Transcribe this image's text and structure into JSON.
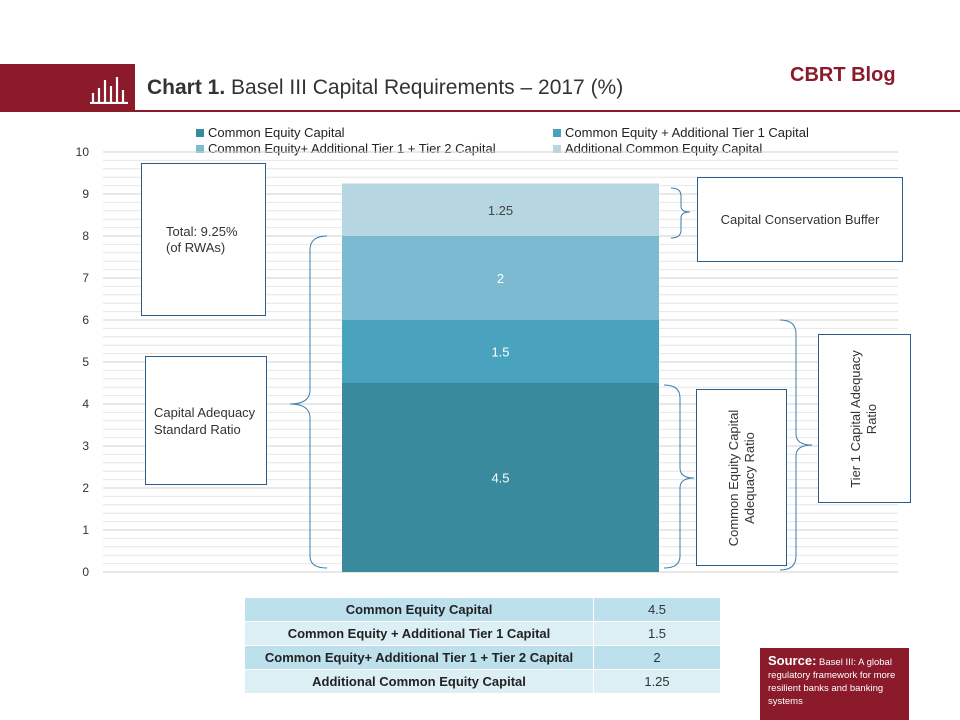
{
  "header": {
    "title_bold": "Chart 1.",
    "title_rest": "Basel III Capital  Requirements – 2017 (%)",
    "blog_label": "CBRT Blog"
  },
  "colors": {
    "brand": "#8b1a2b",
    "series": [
      "#3a8a9e",
      "#4aa3be",
      "#7cbad1",
      "#b6d6e2"
    ]
  },
  "chart_data": {
    "type": "bar",
    "stacked": true,
    "categories": [
      ""
    ],
    "series": [
      {
        "name": "Common Equity Capital",
        "values": [
          4.5
        ]
      },
      {
        "name": "Common Equity + Additional Tier 1 Capital",
        "values": [
          1.5
        ]
      },
      {
        "name": "Common Equity+ Additional Tier 1 + Tier 2 Capital",
        "values": [
          2
        ]
      },
      {
        "name": "Additional Common Equity Capital",
        "values": [
          1.25
        ]
      }
    ],
    "data_labels": [
      "4.5",
      "1.5",
      "2",
      "1.25"
    ],
    "ylim": [
      0,
      10
    ],
    "yticks": [
      "0",
      "1",
      "2",
      "3",
      "4",
      "5",
      "6",
      "7",
      "8",
      "9",
      "10"
    ],
    "grid": true,
    "legend_position": "top"
  },
  "annotations": {
    "total_line1": "Total: 9.25%",
    "total_line2": "(of RWAs)",
    "capital_adequacy_line1": "Capital Adequacy",
    "capital_adequacy_line2": "Standard Ratio",
    "conservation_buffer": "Capital Conservation Buffer",
    "cet1_line1": "Common Equity Capital",
    "cet1_line2": "Adequacy Ratio",
    "tier1_line1": "Tier 1 Capital Adequacy",
    "tier1_line2": "Ratio"
  },
  "table": {
    "rows": [
      {
        "label": "Common Equity Capital",
        "value": "4.5"
      },
      {
        "label": "Common Equity + Additional Tier 1 Capital",
        "value": "1.5"
      },
      {
        "label": "Common Equity+ Additional Tier 1 + Tier 2 Capital",
        "value": "2"
      },
      {
        "label": "Additional Common Equity Capital",
        "value": "1.25"
      }
    ]
  },
  "source": {
    "label": "Source:",
    "text": "Basel III: A global regulatory framework for more resilient banks and banking systems"
  }
}
